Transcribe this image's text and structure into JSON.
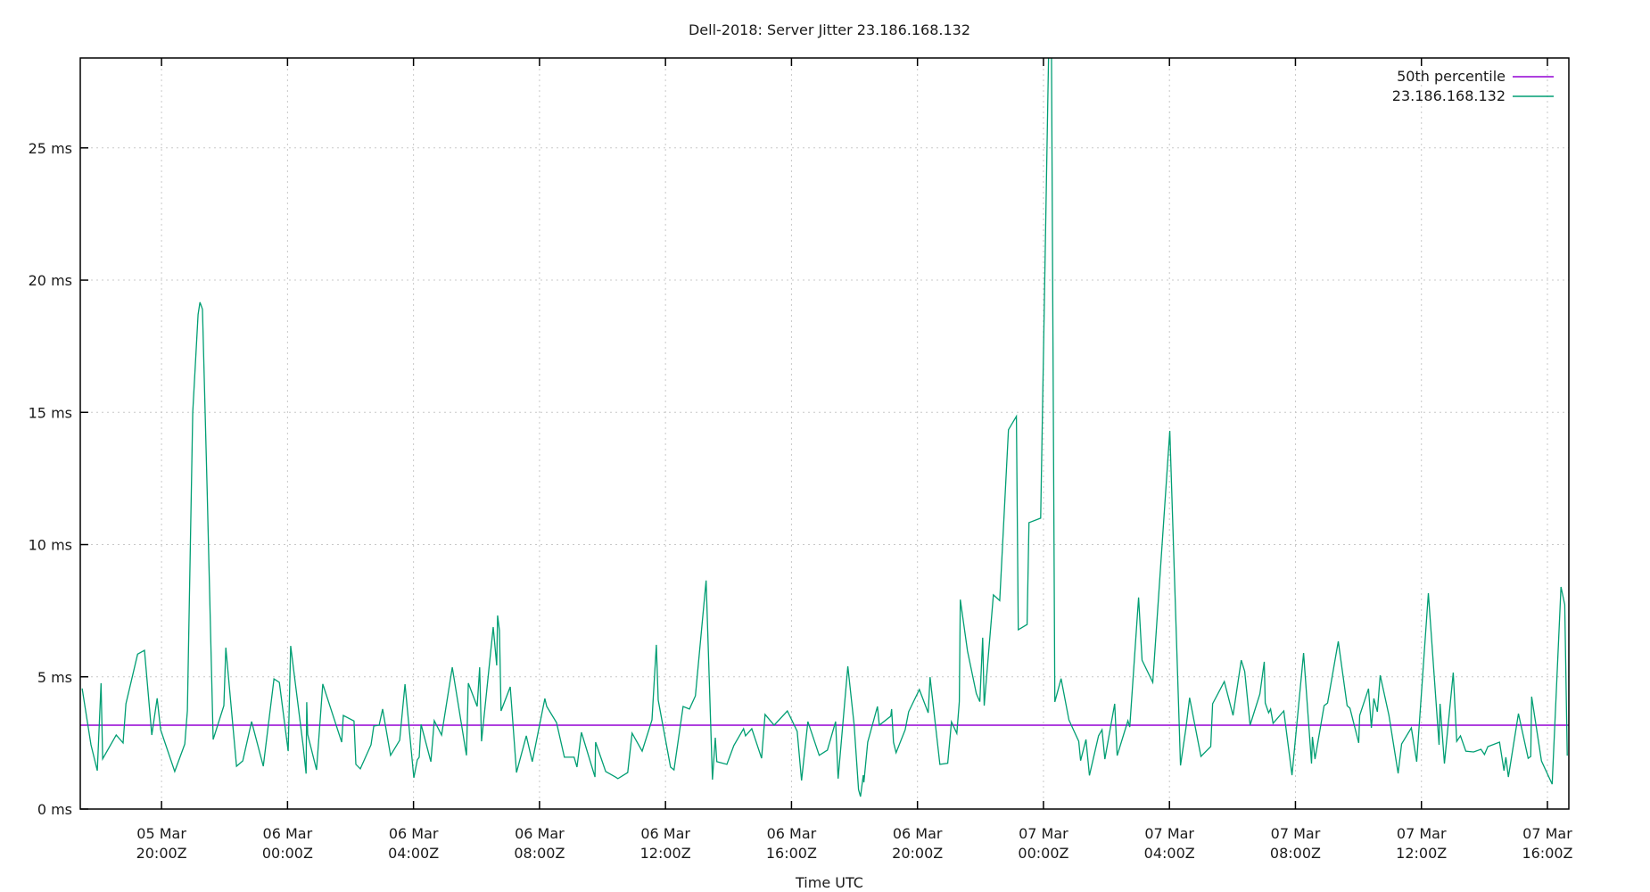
{
  "title": "Dell-2018: Server Jitter 23.186.168.132",
  "chart_data": {
    "type": "line",
    "title": "Dell-2018: Server Jitter 23.186.168.132",
    "xlabel": "Time UTC",
    "ylabel": "",
    "x_unit": "hours since 05 Mar 20:00Z",
    "xlim": [
      -2.58,
      44.68
    ],
    "ylim": [
      0,
      28.4
    ],
    "grid": true,
    "legend_position": "top-right",
    "y_ticks": [
      {
        "value": 0,
        "label": "0 ms"
      },
      {
        "value": 5,
        "label": "5 ms"
      },
      {
        "value": 10,
        "label": "10 ms"
      },
      {
        "value": 15,
        "label": "15 ms"
      },
      {
        "value": 20,
        "label": "20 ms"
      },
      {
        "value": 25,
        "label": "25 ms"
      }
    ],
    "x_ticks": [
      {
        "value": 0,
        "date": "05 Mar",
        "time": "20:00Z"
      },
      {
        "value": 4,
        "date": "06 Mar",
        "time": "00:00Z"
      },
      {
        "value": 8,
        "date": "06 Mar",
        "time": "04:00Z"
      },
      {
        "value": 12,
        "date": "06 Mar",
        "time": "08:00Z"
      },
      {
        "value": 16,
        "date": "06 Mar",
        "time": "12:00Z"
      },
      {
        "value": 20,
        "date": "06 Mar",
        "time": "16:00Z"
      },
      {
        "value": 24,
        "date": "06 Mar",
        "time": "20:00Z"
      },
      {
        "value": 28,
        "date": "07 Mar",
        "time": "00:00Z"
      },
      {
        "value": 32,
        "date": "07 Mar",
        "time": "04:00Z"
      },
      {
        "value": 36,
        "date": "07 Mar",
        "time": "08:00Z"
      },
      {
        "value": 40,
        "date": "07 Mar",
        "time": "12:00Z"
      },
      {
        "value": 44,
        "date": "07 Mar",
        "time": "16:00Z"
      }
    ],
    "series": [
      {
        "name": "50th percentile",
        "color": "#9400d3",
        "type": "hline",
        "value": 3.17
      },
      {
        "name": "23.186.168.132",
        "color": "#009e73",
        "type": "line",
        "points": [
          [
            -2.52,
            4.56
          ],
          [
            -2.24,
            2.43
          ],
          [
            -2.04,
            1.45
          ],
          [
            -1.92,
            4.76
          ],
          [
            -1.87,
            1.9
          ],
          [
            -1.44,
            2.8
          ],
          [
            -1.22,
            2.5
          ],
          [
            -1.13,
            3.98
          ],
          [
            -0.76,
            5.86
          ],
          [
            -0.54,
            6.0
          ],
          [
            -0.31,
            2.8
          ],
          [
            -0.14,
            4.19
          ],
          [
            -0.03,
            3.0
          ],
          [
            0.42,
            1.42
          ],
          [
            0.74,
            2.46
          ],
          [
            0.82,
            3.72
          ],
          [
            0.99,
            15.0
          ],
          [
            1.16,
            18.7
          ],
          [
            1.22,
            19.16
          ],
          [
            1.3,
            18.9
          ],
          [
            1.45,
            12.0
          ],
          [
            1.64,
            2.63
          ],
          [
            1.98,
            3.91
          ],
          [
            2.04,
            6.1
          ],
          [
            2.38,
            1.62
          ],
          [
            2.58,
            1.82
          ],
          [
            2.86,
            3.31
          ],
          [
            3.23,
            1.62
          ],
          [
            3.57,
            4.92
          ],
          [
            3.74,
            4.79
          ],
          [
            4.02,
            2.19
          ],
          [
            4.1,
            6.17
          ],
          [
            4.5,
            2.36
          ],
          [
            4.59,
            1.34
          ],
          [
            4.61,
            4.04
          ],
          [
            4.64,
            2.82
          ],
          [
            4.92,
            1.48
          ],
          [
            5.12,
            4.73
          ],
          [
            5.72,
            2.53
          ],
          [
            5.77,
            3.54
          ],
          [
            6.11,
            3.33
          ],
          [
            6.17,
            1.69
          ],
          [
            6.31,
            1.52
          ],
          [
            6.65,
            2.43
          ],
          [
            6.74,
            3.14
          ],
          [
            6.91,
            3.17
          ],
          [
            7.02,
            3.78
          ],
          [
            7.27,
            2.03
          ],
          [
            7.56,
            2.6
          ],
          [
            7.73,
            4.72
          ],
          [
            8.01,
            1.18
          ],
          [
            8.12,
            1.86
          ],
          [
            8.18,
            1.96
          ],
          [
            8.24,
            3.2
          ],
          [
            8.55,
            1.79
          ],
          [
            8.66,
            3.34
          ],
          [
            8.89,
            2.8
          ],
          [
            9.23,
            5.36
          ],
          [
            9.68,
            2.03
          ],
          [
            9.74,
            4.76
          ],
          [
            10.02,
            3.88
          ],
          [
            10.1,
            5.36
          ],
          [
            10.16,
            2.56
          ],
          [
            10.53,
            6.88
          ],
          [
            10.64,
            5.43
          ],
          [
            10.67,
            7.32
          ],
          [
            10.73,
            6.75
          ],
          [
            10.78,
            3.71
          ],
          [
            11.07,
            4.62
          ],
          [
            11.27,
            1.38
          ],
          [
            11.58,
            2.77
          ],
          [
            11.77,
            1.79
          ],
          [
            12.17,
            4.18
          ],
          [
            12.23,
            3.88
          ],
          [
            12.54,
            3.27
          ],
          [
            12.79,
            1.96
          ],
          [
            13.1,
            1.96
          ],
          [
            13.19,
            1.59
          ],
          [
            13.33,
            2.9
          ],
          [
            13.76,
            1.21
          ],
          [
            13.78,
            2.53
          ],
          [
            14.1,
            1.42
          ],
          [
            14.41,
            1.21
          ],
          [
            14.49,
            1.15
          ],
          [
            14.8,
            1.38
          ],
          [
            14.94,
            2.87
          ],
          [
            15.26,
            2.19
          ],
          [
            15.57,
            3.37
          ],
          [
            15.71,
            6.21
          ],
          [
            15.77,
            4.12
          ],
          [
            16.16,
            1.59
          ],
          [
            16.27,
            1.48
          ],
          [
            16.56,
            3.88
          ],
          [
            16.76,
            3.78
          ],
          [
            16.95,
            4.28
          ],
          [
            17.29,
            8.64
          ],
          [
            17.49,
            1.11
          ],
          [
            17.58,
            2.7
          ],
          [
            17.63,
            1.79
          ],
          [
            17.95,
            1.69
          ],
          [
            18.17,
            2.4
          ],
          [
            18.48,
            3.04
          ],
          [
            18.54,
            2.77
          ],
          [
            18.74,
            3.04
          ],
          [
            19.05,
            1.92
          ],
          [
            19.16,
            3.58
          ],
          [
            19.45,
            3.17
          ],
          [
            19.87,
            3.71
          ],
          [
            20.18,
            2.94
          ],
          [
            20.32,
            1.08
          ],
          [
            20.52,
            3.31
          ],
          [
            20.88,
            2.03
          ],
          [
            21.14,
            2.23
          ],
          [
            21.4,
            3.31
          ],
          [
            21.48,
            1.15
          ],
          [
            21.79,
            5.4
          ],
          [
            21.99,
            3.17
          ],
          [
            22.13,
            0.74
          ],
          [
            22.19,
            0.47
          ],
          [
            22.28,
            1.28
          ],
          [
            22.3,
            1.01
          ],
          [
            22.42,
            2.53
          ],
          [
            22.73,
            3.88
          ],
          [
            22.79,
            3.17
          ],
          [
            23.15,
            3.51
          ],
          [
            23.18,
            3.78
          ],
          [
            23.24,
            2.53
          ],
          [
            23.32,
            2.13
          ],
          [
            23.61,
            3.0
          ],
          [
            23.72,
            3.68
          ],
          [
            24.06,
            4.52
          ],
          [
            24.34,
            3.64
          ],
          [
            24.4,
            4.99
          ],
          [
            24.71,
            1.69
          ],
          [
            24.96,
            1.73
          ],
          [
            25.08,
            3.3
          ],
          [
            25.25,
            2.86
          ],
          [
            25.33,
            4.06
          ],
          [
            25.36,
            7.92
          ],
          [
            25.59,
            5.97
          ],
          [
            25.87,
            4.36
          ],
          [
            25.98,
            4.06
          ],
          [
            26.07,
            6.48
          ],
          [
            26.12,
            3.91
          ],
          [
            26.41,
            8.1
          ],
          [
            26.61,
            7.88
          ],
          [
            26.89,
            14.34
          ],
          [
            27.14,
            14.85
          ],
          [
            27.2,
            6.78
          ],
          [
            27.48,
            6.98
          ],
          [
            27.54,
            10.83
          ],
          [
            27.91,
            11.0
          ],
          [
            28.19,
            30.5
          ],
          [
            28.25,
            29.5
          ],
          [
            28.36,
            4.05
          ],
          [
            28.56,
            4.93
          ],
          [
            28.81,
            3.37
          ],
          [
            29.12,
            2.56
          ],
          [
            29.18,
            1.83
          ],
          [
            29.35,
            2.63
          ],
          [
            29.46,
            1.27
          ],
          [
            29.75,
            2.77
          ],
          [
            29.86,
            3.0
          ],
          [
            29.95,
            1.89
          ],
          [
            30.26,
            3.98
          ],
          [
            30.34,
            2.02
          ],
          [
            30.68,
            3.34
          ],
          [
            30.74,
            3.1
          ],
          [
            31.02,
            8.0
          ],
          [
            31.13,
            5.63
          ],
          [
            31.47,
            4.79
          ],
          [
            32.01,
            14.3
          ],
          [
            32.35,
            1.65
          ],
          [
            32.52,
            3.04
          ],
          [
            32.64,
            4.21
          ],
          [
            33.0,
            1.99
          ],
          [
            33.31,
            2.36
          ],
          [
            33.37,
            3.98
          ],
          [
            33.74,
            4.82
          ],
          [
            34.02,
            3.54
          ],
          [
            34.28,
            5.63
          ],
          [
            34.39,
            5.2
          ],
          [
            34.56,
            3.17
          ],
          [
            34.87,
            4.35
          ],
          [
            35.01,
            5.57
          ],
          [
            35.04,
            4.01
          ],
          [
            35.15,
            3.64
          ],
          [
            35.21,
            3.78
          ],
          [
            35.29,
            3.24
          ],
          [
            35.63,
            3.71
          ],
          [
            35.89,
            1.28
          ],
          [
            36.26,
            5.9
          ],
          [
            36.51,
            1.72
          ],
          [
            36.54,
            2.73
          ],
          [
            36.62,
            1.89
          ],
          [
            36.91,
            3.91
          ],
          [
            37.02,
            4.01
          ],
          [
            37.36,
            6.34
          ],
          [
            37.64,
            3.91
          ],
          [
            37.73,
            3.81
          ],
          [
            38.01,
            2.5
          ],
          [
            38.04,
            3.54
          ],
          [
            38.32,
            4.55
          ],
          [
            38.41,
            3.07
          ],
          [
            38.49,
            4.18
          ],
          [
            38.6,
            3.68
          ],
          [
            38.69,
            5.06
          ],
          [
            38.97,
            3.54
          ],
          [
            39.26,
            1.35
          ],
          [
            39.37,
            2.46
          ],
          [
            39.68,
            3.07
          ],
          [
            39.85,
            1.79
          ],
          [
            40.22,
            8.16
          ],
          [
            40.56,
            2.43
          ],
          [
            40.59,
            3.98
          ],
          [
            40.73,
            1.72
          ],
          [
            41.01,
            5.16
          ],
          [
            41.12,
            2.56
          ],
          [
            41.24,
            2.77
          ],
          [
            41.41,
            2.19
          ],
          [
            41.66,
            2.16
          ],
          [
            41.89,
            2.26
          ],
          [
            42.0,
            2.06
          ],
          [
            42.11,
            2.36
          ],
          [
            42.48,
            2.53
          ],
          [
            42.62,
            1.45
          ],
          [
            42.68,
            1.96
          ],
          [
            42.76,
            1.21
          ],
          [
            43.08,
            3.61
          ],
          [
            43.39,
            1.92
          ],
          [
            43.47,
            1.99
          ],
          [
            43.5,
            4.25
          ],
          [
            43.81,
            1.82
          ],
          [
            44.15,
            0.94
          ],
          [
            44.43,
            8.4
          ],
          [
            44.55,
            7.73
          ],
          [
            44.63,
            2.02
          ]
        ]
      }
    ]
  },
  "legend": {
    "items": [
      {
        "label": "50th percentile",
        "color": "#9400d3"
      },
      {
        "label": "23.186.168.132",
        "color": "#009e73"
      }
    ]
  }
}
